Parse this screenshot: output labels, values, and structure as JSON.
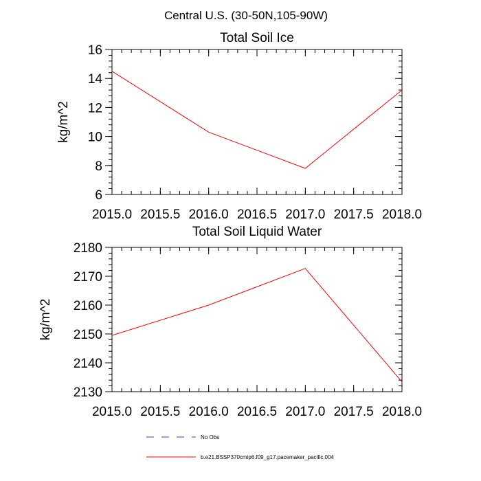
{
  "figure": {
    "suptitle": "Central U.S. (30-50N,105-90W)"
  },
  "legend": {
    "placement": "bottom-center",
    "entries": [
      {
        "label": "No Obs",
        "color": "#3b3bd0",
        "style": "dashed"
      },
      {
        "label": "b.e21.BSSP370cmip6.f09_g17.pacemaker_pacific.004",
        "color": "#ff0000",
        "style": "solid"
      }
    ]
  },
  "chart_data": [
    {
      "type": "line",
      "title": "Total Soil Ice",
      "xlabel": "",
      "ylabel": "kg/m^2",
      "xlim": [
        2015.0,
        2018.0
      ],
      "ylim": [
        6,
        16
      ],
      "xticks": [
        "2015.0",
        "2015.5",
        "2016.0",
        "2016.5",
        "2017.0",
        "2017.5",
        "2018.0"
      ],
      "yticks": [
        "6",
        "8",
        "10",
        "12",
        "14",
        "16"
      ],
      "grid": false,
      "series": [
        {
          "name": "b.e21.BSSP370cmip6.f09_g17.pacemaker_pacific.004",
          "color": "#ff0000",
          "x": [
            2015.0,
            2016.0,
            2017.0,
            2018.0
          ],
          "y": [
            14.5,
            10.3,
            7.8,
            13.2
          ]
        }
      ]
    },
    {
      "type": "line",
      "title": "Total Soil Liquid Water",
      "xlabel": "",
      "ylabel": "kg/m^2",
      "xlim": [
        2015.0,
        2018.0
      ],
      "ylim": [
        2130,
        2180
      ],
      "xticks": [
        "2015.0",
        "2015.5",
        "2016.0",
        "2016.5",
        "2017.0",
        "2017.5",
        "2018.0"
      ],
      "yticks": [
        "2130",
        "2140",
        "2150",
        "2160",
        "2170",
        "2180"
      ],
      "grid": false,
      "series": [
        {
          "name": "b.e21.BSSP370cmip6.f09_g17.pacemaker_pacific.004",
          "color": "#ff0000",
          "x": [
            2015.0,
            2016.0,
            2017.0,
            2018.0
          ],
          "y": [
            2149.5,
            2160.0,
            2172.7,
            2133.4
          ]
        }
      ]
    }
  ]
}
